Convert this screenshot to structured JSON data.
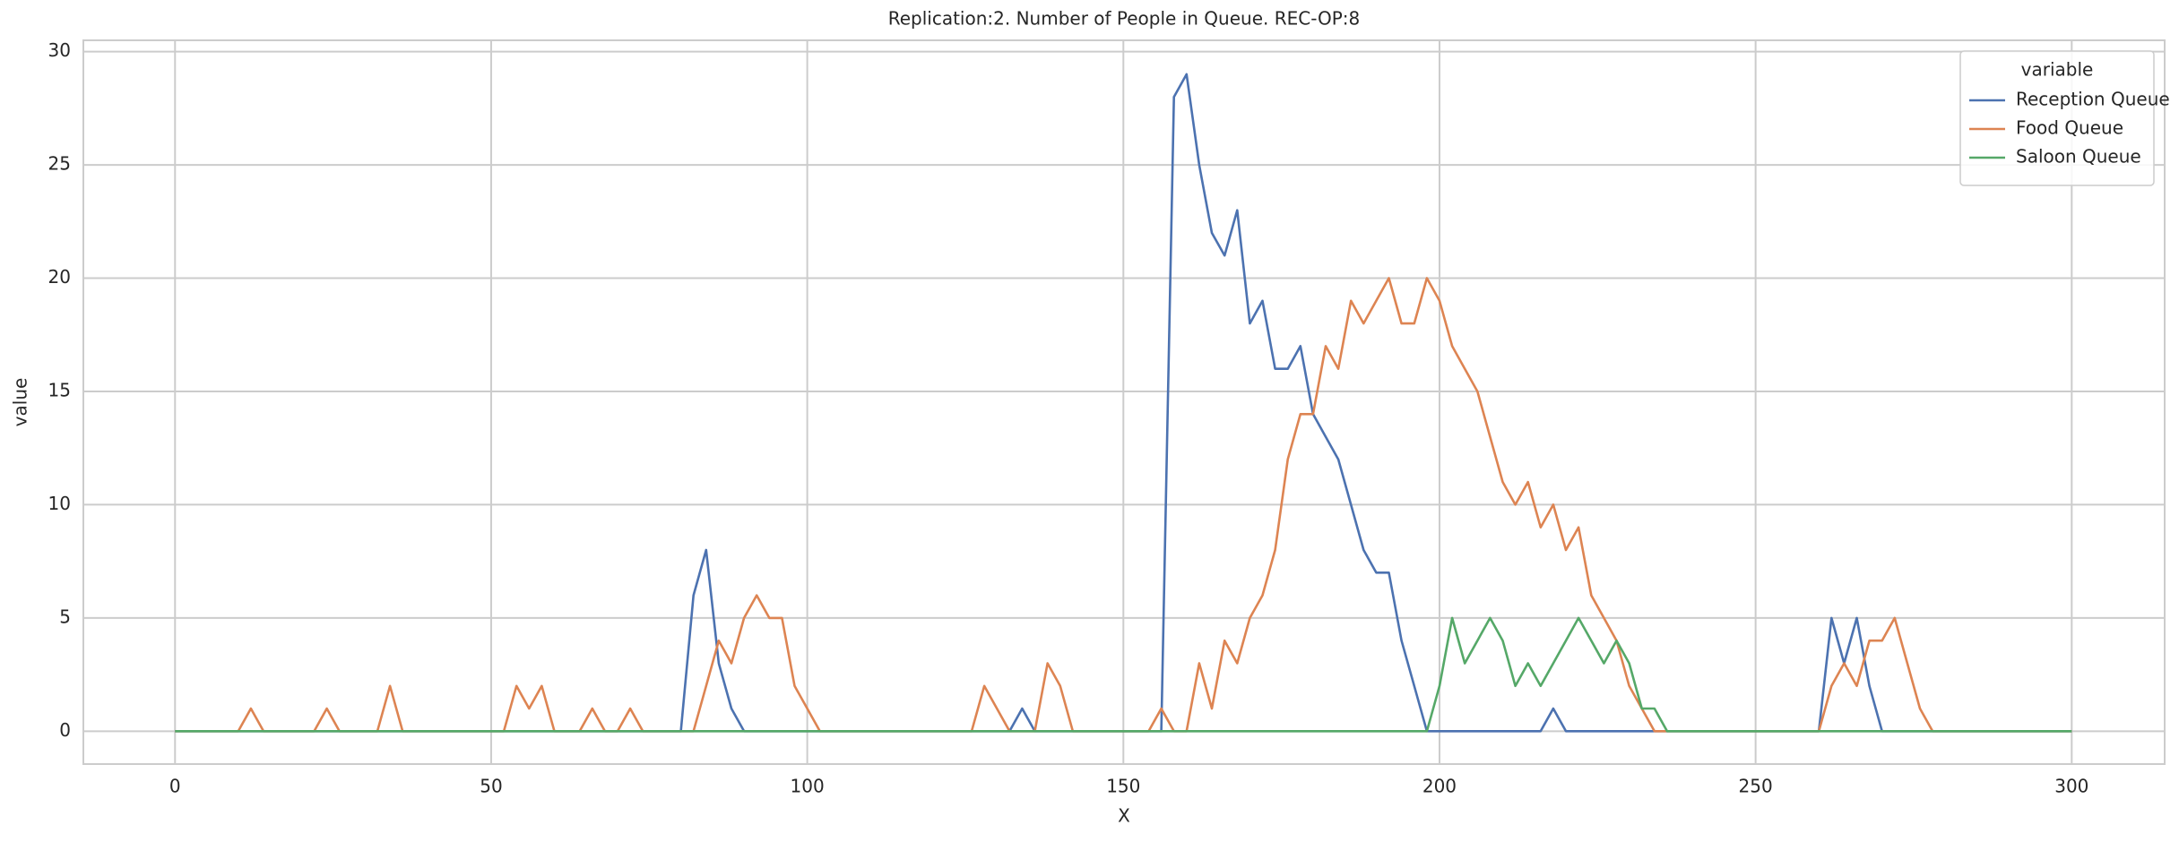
{
  "chart_data": {
    "type": "line",
    "title": "Replication:2. Number of People in Queue. REC-OP:8",
    "xlabel": "X",
    "ylabel": "value",
    "legend_title": "variable",
    "legend_position": "upper right",
    "grid": true,
    "xlim": [
      -14.5,
      314.7
    ],
    "ylim": [
      -1.45,
      30.5
    ],
    "xticks": [
      0,
      50,
      100,
      150,
      200,
      250,
      300
    ],
    "yticks": [
      0,
      5,
      10,
      15,
      20,
      25,
      30
    ],
    "x": [
      0,
      2,
      4,
      6,
      8,
      10,
      12,
      14,
      16,
      18,
      20,
      22,
      24,
      26,
      28,
      30,
      32,
      34,
      36,
      38,
      40,
      42,
      44,
      46,
      48,
      50,
      52,
      54,
      56,
      58,
      60,
      62,
      64,
      66,
      68,
      70,
      72,
      74,
      76,
      78,
      80,
      82,
      84,
      86,
      88,
      90,
      92,
      94,
      96,
      98,
      100,
      102,
      104,
      106,
      108,
      110,
      112,
      114,
      116,
      118,
      120,
      122,
      124,
      126,
      128,
      130,
      132,
      134,
      136,
      138,
      140,
      142,
      144,
      146,
      148,
      150,
      152,
      154,
      156,
      158,
      160,
      162,
      164,
      166,
      168,
      170,
      172,
      174,
      176,
      178,
      180,
      182,
      184,
      186,
      188,
      190,
      192,
      194,
      196,
      198,
      200,
      202,
      204,
      206,
      208,
      210,
      212,
      214,
      216,
      218,
      220,
      222,
      224,
      226,
      228,
      230,
      232,
      234,
      236,
      238,
      240,
      242,
      244,
      246,
      248,
      250,
      252,
      254,
      256,
      258,
      260,
      262,
      264,
      266,
      268,
      270,
      272,
      274,
      276,
      278,
      280,
      282,
      284,
      286,
      288,
      290,
      292,
      294,
      296,
      298,
      300
    ],
    "series": [
      {
        "name": "Reception Queue",
        "color": "#4c72b0",
        "values": [
          0,
          0,
          0,
          0,
          0,
          0,
          0,
          0,
          0,
          0,
          0,
          0,
          0,
          0,
          0,
          0,
          0,
          0,
          0,
          0,
          0,
          0,
          0,
          0,
          0,
          0,
          0,
          0,
          0,
          0,
          0,
          0,
          0,
          0,
          0,
          0,
          0,
          0,
          0,
          0,
          0,
          6,
          8,
          3,
          1,
          0,
          0,
          0,
          0,
          0,
          0,
          0,
          0,
          0,
          0,
          0,
          0,
          0,
          0,
          0,
          0,
          0,
          0,
          0,
          0,
          0,
          0,
          1,
          0,
          0,
          0,
          0,
          0,
          0,
          0,
          0,
          0,
          0,
          0,
          28,
          29,
          25,
          22,
          21,
          23,
          18,
          19,
          16,
          16,
          17,
          14,
          13,
          12,
          10,
          8,
          7,
          7,
          4,
          2,
          0,
          0,
          0,
          0,
          0,
          0,
          0,
          0,
          0,
          0,
          1,
          0,
          0,
          0,
          0,
          0,
          0,
          0,
          0,
          0,
          0,
          0,
          0,
          0,
          0,
          0,
          0,
          0,
          0,
          0,
          0,
          0,
          5,
          3,
          5,
          2,
          0,
          0,
          0,
          0,
          0,
          0,
          0,
          0,
          0,
          0,
          0,
          0,
          0,
          0,
          0,
          0
        ]
      },
      {
        "name": "Food Queue",
        "color": "#dd8452",
        "values": [
          0,
          0,
          0,
          0,
          0,
          0,
          1,
          0,
          0,
          0,
          0,
          0,
          1,
          0,
          0,
          0,
          0,
          2,
          0,
          0,
          0,
          0,
          0,
          0,
          0,
          0,
          0,
          2,
          1,
          2,
          0,
          0,
          0,
          1,
          0,
          0,
          1,
          0,
          0,
          0,
          0,
          0,
          2,
          4,
          3,
          5,
          6,
          5,
          5,
          2,
          1,
          0,
          0,
          0,
          0,
          0,
          0,
          0,
          0,
          0,
          0,
          0,
          0,
          0,
          2,
          1,
          0,
          0,
          0,
          3,
          2,
          0,
          0,
          0,
          0,
          0,
          0,
          0,
          1,
          0,
          0,
          3,
          1,
          4,
          3,
          5,
          6,
          8,
          12,
          14,
          14,
          17,
          16,
          19,
          18,
          19,
          20,
          18,
          18,
          20,
          19,
          17,
          16,
          15,
          13,
          11,
          10,
          11,
          9,
          10,
          8,
          9,
          6,
          5,
          4,
          2,
          1,
          0,
          0,
          0,
          0,
          0,
          0,
          0,
          0,
          0,
          0,
          0,
          0,
          0,
          0,
          2,
          3,
          2,
          4,
          4,
          5,
          3,
          1,
          0,
          0,
          0,
          0,
          0,
          0,
          0,
          0,
          0,
          0,
          0,
          0
        ]
      },
      {
        "name": "Saloon Queue",
        "color": "#55a868",
        "values": [
          0,
          0,
          0,
          0,
          0,
          0,
          0,
          0,
          0,
          0,
          0,
          0,
          0,
          0,
          0,
          0,
          0,
          0,
          0,
          0,
          0,
          0,
          0,
          0,
          0,
          0,
          0,
          0,
          0,
          0,
          0,
          0,
          0,
          0,
          0,
          0,
          0,
          0,
          0,
          0,
          0,
          0,
          0,
          0,
          0,
          0,
          0,
          0,
          0,
          0,
          0,
          0,
          0,
          0,
          0,
          0,
          0,
          0,
          0,
          0,
          0,
          0,
          0,
          0,
          0,
          0,
          0,
          0,
          0,
          0,
          0,
          0,
          0,
          0,
          0,
          0,
          0,
          0,
          0,
          0,
          0,
          0,
          0,
          0,
          0,
          0,
          0,
          0,
          0,
          0,
          0,
          0,
          0,
          0,
          0,
          0,
          0,
          0,
          0,
          0,
          2,
          5,
          3,
          4,
          5,
          4,
          2,
          3,
          2,
          3,
          4,
          5,
          4,
          3,
          4,
          3,
          1,
          1,
          0,
          0,
          0,
          0,
          0,
          0,
          0,
          0,
          0,
          0,
          0,
          0,
          0,
          0,
          0,
          0,
          0,
          0,
          0,
          0,
          0,
          0,
          0,
          0,
          0,
          0,
          0,
          0,
          0,
          0,
          0,
          0,
          0
        ]
      }
    ]
  }
}
